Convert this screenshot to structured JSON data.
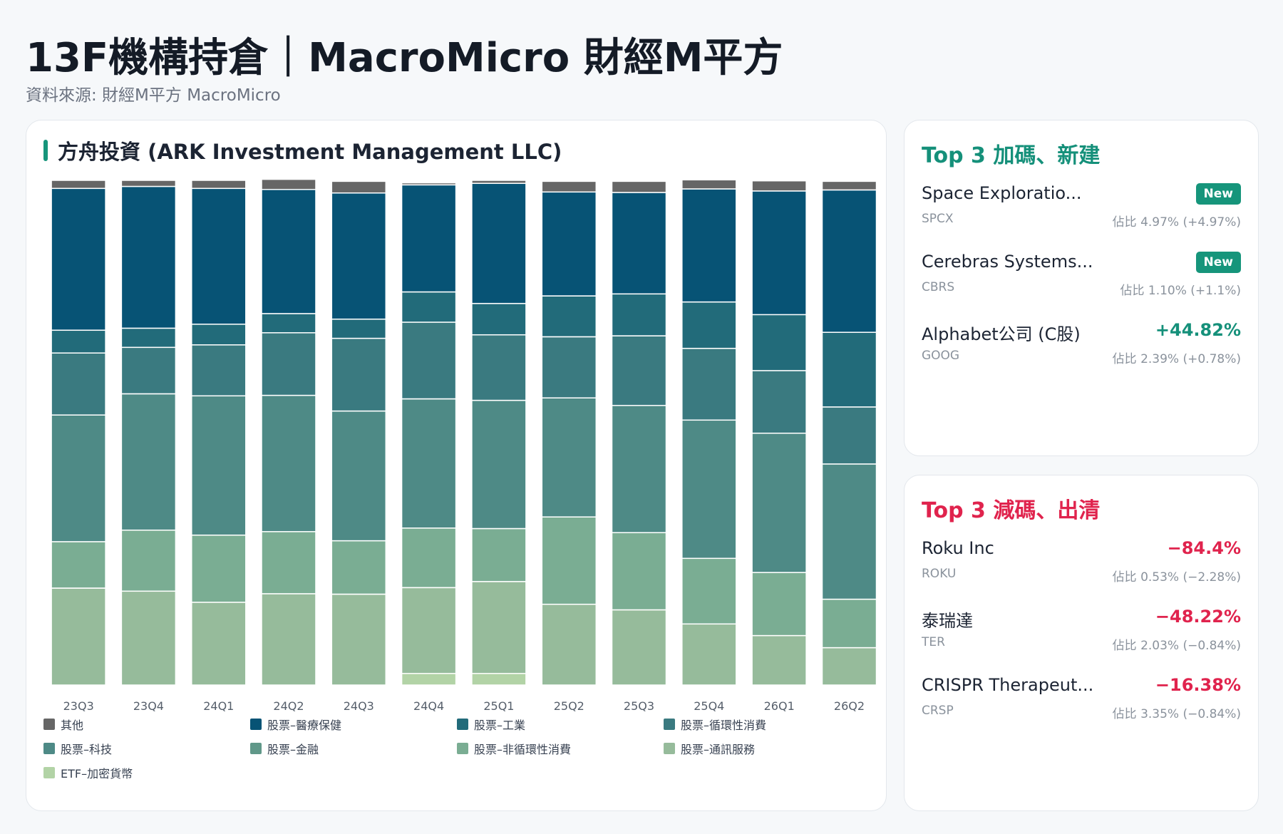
{
  "header": {
    "title": "13F機構持倉｜MacroMicro 財經M平方",
    "subtitle": "資料來源: 財經M平方 MacroMicro"
  },
  "chart_card": {
    "title": "方舟投資 (ARK Investment Management LLC)",
    "accent_color": "#16957b"
  },
  "chart_data": {
    "type": "bar",
    "stacked": true,
    "normalized": true,
    "unit": "%",
    "ylim": [
      0,
      100
    ],
    "categories": [
      "23Q3",
      "23Q4",
      "24Q1",
      "24Q2",
      "24Q3",
      "24Q4",
      "25Q1",
      "25Q2",
      "25Q3",
      "25Q4",
      "26Q1",
      "26Q2"
    ],
    "series": [
      {
        "name": "ETF–加密貨幣",
        "color": "#b2d3a6",
        "values": [
          0,
          0,
          0,
          0,
          0,
          2.3,
          2.3,
          0,
          0,
          0,
          0,
          0
        ]
      },
      {
        "name": "股票–通訊服務",
        "color": "#96bb9b",
        "values": [
          19.2,
          18.6,
          16.4,
          18.1,
          18.0,
          17.0,
          18.2,
          16.0,
          14.9,
          12.1,
          9.8,
          7.4
        ]
      },
      {
        "name": "股票–非循環性消費",
        "color": "#7aad93",
        "values": [
          9.2,
          12.1,
          13.3,
          12.3,
          10.6,
          11.8,
          10.5,
          17.3,
          15.3,
          13.0,
          12.5,
          9.6
        ]
      },
      {
        "name": "股票–金融",
        "color": "#609889",
        "values": [
          0,
          0,
          0,
          0,
          0,
          0,
          0,
          0,
          0,
          0,
          0,
          0
        ]
      },
      {
        "name": "股票–科技",
        "color": "#4e8a86",
        "values": [
          25.1,
          27.0,
          27.6,
          27.0,
          25.7,
          25.6,
          25.4,
          23.6,
          25.2,
          27.4,
          27.6,
          26.8
        ]
      },
      {
        "name": "股票–循環性消費",
        "color": "#3a7a80",
        "values": [
          12.3,
          9.2,
          10.1,
          12.4,
          14.4,
          15.2,
          13.0,
          12.1,
          13.8,
          14.2,
          12.4,
          11.3
        ]
      },
      {
        "name": "股票–工業",
        "color": "#226b7a",
        "values": [
          4.5,
          3.8,
          4.1,
          3.8,
          3.8,
          6.0,
          6.2,
          8.1,
          8.3,
          9.2,
          11.1,
          14.8
        ]
      },
      {
        "name": "股票–醫療保健",
        "color": "#075375",
        "values": [
          28.1,
          28.1,
          26.9,
          24.6,
          25.0,
          21.2,
          23.8,
          20.6,
          20.1,
          22.4,
          24.5,
          28.2
        ]
      },
      {
        "name": "其他",
        "color": "#666666",
        "values": [
          1.6,
          1.2,
          1.6,
          2.0,
          2.3,
          0.4,
          0.6,
          2.1,
          2.2,
          1.8,
          2.0,
          1.7
        ]
      }
    ],
    "legend": [
      "其他",
      "股票–醫療保健",
      "股票–工業",
      "股票–循環性消費",
      "股票–科技",
      "股票–金融",
      "股票–非循環性消費",
      "股票–通訊服務",
      "ETF–加密貨幣"
    ],
    "legend_position": "bottom",
    "grid": false
  },
  "top_up": {
    "title": "Top 3 加碼、新建",
    "color": "#15907a",
    "items": [
      {
        "name": "Space Exploratio...",
        "ticker": "SPCX",
        "badge": "New",
        "change": "",
        "detail": "佔比 4.97% (+4.97%)"
      },
      {
        "name": "Cerebras Systems...",
        "ticker": "CBRS",
        "badge": "New",
        "change": "",
        "detail": "佔比 1.10% (+1.1%)"
      },
      {
        "name": "Alphabet公司 (C股)",
        "ticker": "GOOG",
        "badge": "",
        "change": "+44.82%",
        "detail": "佔比 2.39% (+0.78%)"
      }
    ]
  },
  "top_down": {
    "title": "Top 3 減碼、出清",
    "color": "#e0234d",
    "items": [
      {
        "name": "Roku Inc",
        "ticker": "ROKU",
        "change": "−84.4%",
        "detail": "佔比 0.53% (−2.28%)"
      },
      {
        "name": "泰瑞達",
        "ticker": "TER",
        "change": "−48.22%",
        "detail": "佔比 2.03% (−0.84%)"
      },
      {
        "name": "CRISPR Therapeut...",
        "ticker": "CRSP",
        "change": "−16.38%",
        "detail": "佔比 3.35% (−0.84%)"
      }
    ]
  }
}
